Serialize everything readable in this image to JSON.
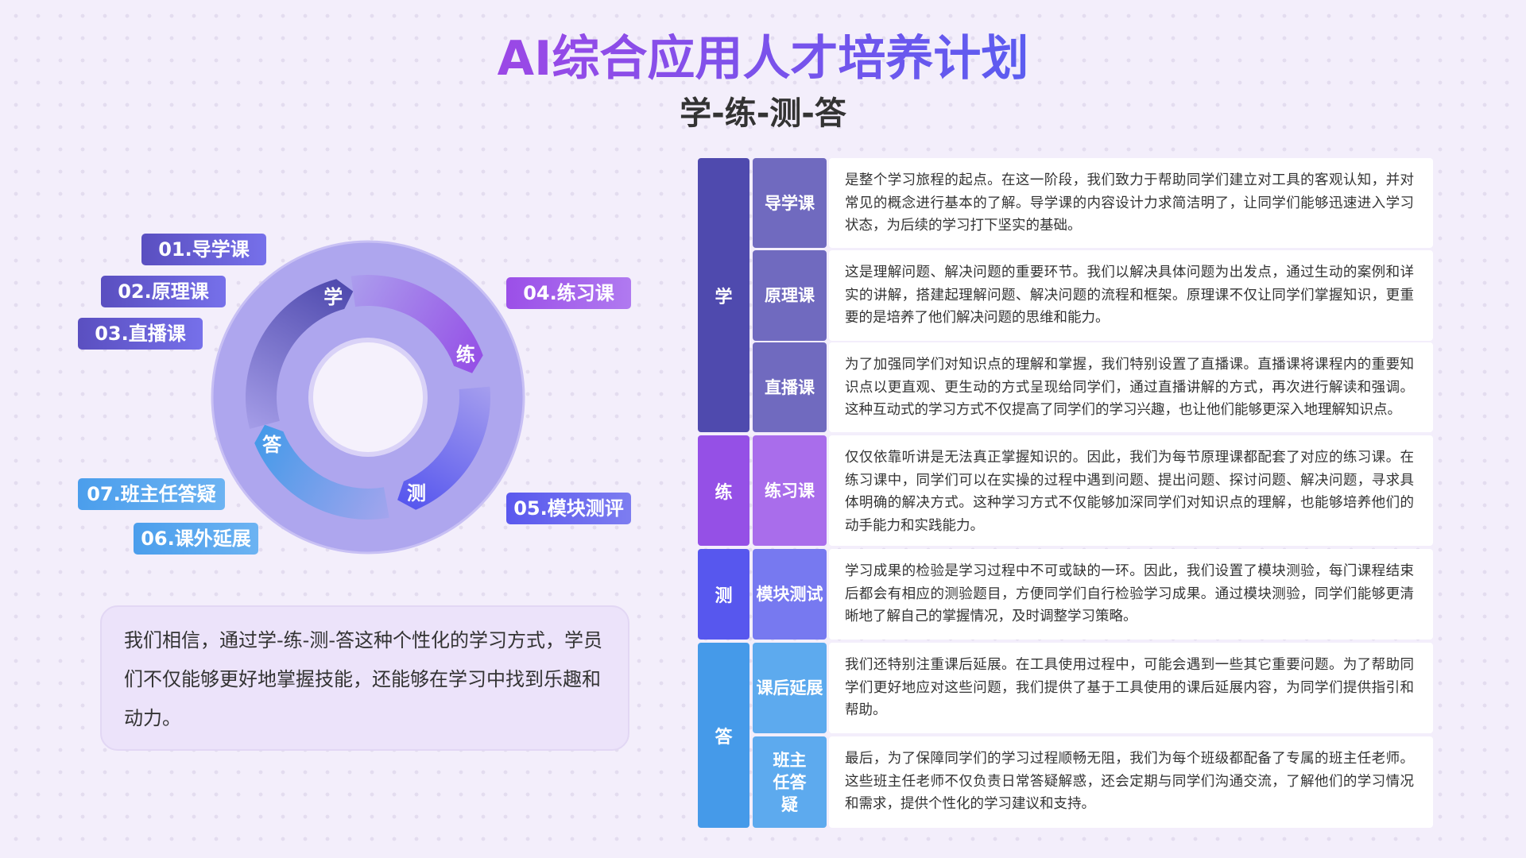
{
  "header": {
    "title": "AI综合应用人才培养计划",
    "subtitle": "学-练-测-答"
  },
  "colors": {
    "xue": "#4f4aae",
    "xue_sub": "#706abf",
    "lian": "#9550e6",
    "lian_sub": "#a96deb",
    "ce": "#5757ee",
    "ce_sub": "#7779f0",
    "da": "#459ae9",
    "da_sub": "#5daaee"
  },
  "cycle": {
    "stages": [
      "学",
      "练",
      "测",
      "答"
    ],
    "labels": [
      "01.导学课",
      "02.原理课",
      "03.直播课",
      "04.练习课",
      "05.模块测评",
      "06.课外延展",
      "07.班主任答疑"
    ]
  },
  "quote": "我们相信，通过学-练-测-答这种个性化的学习方式，学员们不仅能够更好地掌握技能，还能够在学习中找到乐趣和动力。",
  "table": {
    "groups": [
      "学",
      "练",
      "测",
      "答"
    ],
    "rows": [
      {
        "name": "导学课",
        "text": "是整个学习旅程的起点。在这一阶段，我们致力于帮助同学们建立对工具的客观认知，并对常见的概念进行基本的了解。导学课的内容设计力求简洁明了，让同学们能够迅速进入学习状态，为后续的学习打下坚实的基础。"
      },
      {
        "name": "原理课",
        "text": "这是理解问题、解决问题的重要环节。我们以解决具体问题为出发点，通过生动的案例和详实的讲解，搭建起理解问题、解决问题的流程和框架。原理课不仅让同学们掌握知识，更重要的是培养了他们解决问题的思维和能力。"
      },
      {
        "name": "直播课",
        "text": "为了加强同学们对知识点的理解和掌握，我们特别设置了直播课。直播课将课程内的重要知识点以更直观、更生动的方式呈现给同学们，通过直播讲解的方式，再次进行解读和强调。这种互动式的学习方式不仅提高了同学们的学习兴趣，也让他们能够更深入地理解知识点。"
      },
      {
        "name": "练习课",
        "text": "仅仅依靠听讲是无法真正掌握知识的。因此，我们为每节原理课都配套了对应的练习课。在练习课中，同学们可以在实操的过程中遇到问题、提出问题、探讨问题、解决问题，寻求具体明确的解决方式。这种学习方式不仅能够加深同学们对知识点的理解，也能够培养他们的动手能力和实践能力。"
      },
      {
        "name": "模块测试",
        "text": "学习成果的检验是学习过程中不可或缺的一环。因此，我们设置了模块测验，每门课程结束后都会有相应的测验题目，方便同学们自行检验学习成果。通过模块测验，同学们能够更清晰地了解自己的掌握情况，及时调整学习策略。"
      },
      {
        "name": "课后延展",
        "text": "我们还特别注重课后延展。在工具使用过程中，可能会遇到一些其它重要问题。为了帮助同学们更好地应对这些问题，我们提供了基于工具使用的课后延展内容，为同学们提供指引和帮助。"
      },
      {
        "name": "班主任答疑",
        "text": "最后，为了保障同学们的学习过程顺畅无阻，我们为每个班级都配备了专属的班主任老师。这些班主任老师不仅负责日常答疑解惑，还会定期与同学们沟通交流，了解他们的学习情况和需求，提供个性化的学习建议和支持。"
      }
    ]
  }
}
